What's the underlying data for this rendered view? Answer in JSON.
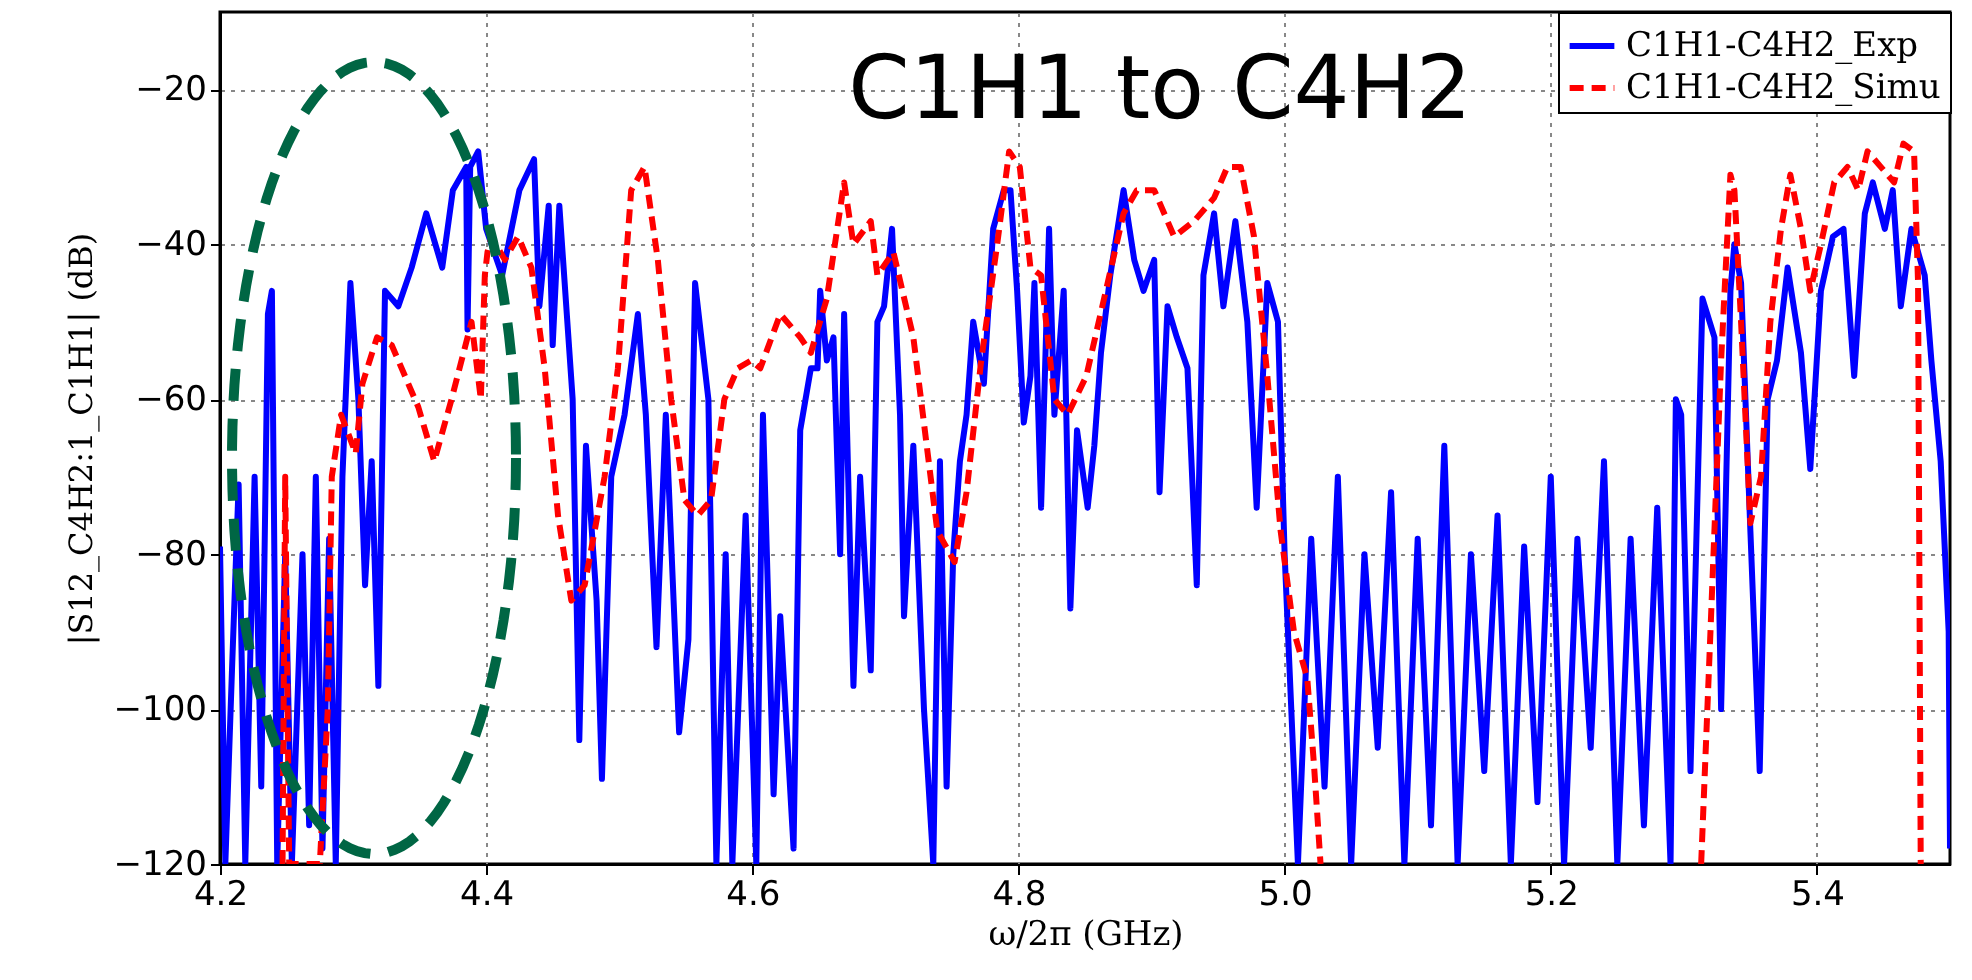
{
  "chart_data": {
    "type": "line",
    "title": "C1H1 to C4H2",
    "xlabel": "ω/2π (GHz)",
    "ylabel": "|S12_C4H2:1_C1H1| (dB)",
    "xlim": [
      4.2,
      5.5
    ],
    "xticks": [
      {
        "value": 4.2,
        "label": "4.2"
      },
      {
        "value": 4.4,
        "label": "4.4"
      },
      {
        "value": 4.6,
        "label": "4.6"
      },
      {
        "value": 4.8,
        "label": "4.8"
      },
      {
        "value": 5.0,
        "label": "5.0"
      },
      {
        "value": 5.2,
        "label": "5.2"
      },
      {
        "value": 5.4,
        "label": "5.4"
      }
    ],
    "ylim": [
      -120,
      -10
    ],
    "yticks": [
      -120,
      -100,
      -80,
      -60,
      -40,
      -20
    ],
    "grid": true,
    "legend": "top right",
    "series": [
      {
        "name": "C1H1-C4H2_Exp",
        "color": "#0000ff",
        "line_style": "solid",
        "x": [
          4.2,
          4.204,
          4.209,
          4.214,
          4.219,
          4.226,
          4.231,
          4.236,
          4.239,
          4.243,
          4.249,
          4.254,
          4.262,
          4.267,
          4.272,
          4.277,
          4.282,
          4.287,
          4.292,
          4.298,
          4.304,
          4.309,
          4.314,
          4.319,
          4.324,
          4.334,
          4.344,
          4.355,
          4.367,
          4.375,
          4.385,
          4.386,
          4.388,
          4.394,
          4.4,
          4.412,
          4.425,
          4.436,
          4.44,
          4.447,
          4.45,
          4.455,
          4.465,
          4.47,
          4.475,
          4.483,
          4.487,
          4.494,
          4.504,
          4.514,
          4.52,
          4.528,
          4.535,
          4.545,
          4.552,
          4.557,
          4.567,
          4.573,
          4.58,
          4.585,
          4.595,
          4.603,
          4.608,
          4.616,
          4.621,
          4.631,
          4.636,
          4.644,
          4.649,
          4.651,
          4.656,
          4.661,
          4.666,
          4.669,
          4.676,
          4.681,
          4.689,
          4.694,
          4.699,
          4.705,
          4.711,
          4.714,
          4.721,
          4.729,
          4.736,
          4.741,
          4.746,
          4.751,
          4.756,
          4.761,
          4.766,
          4.774,
          4.781,
          4.789,
          4.794,
          4.799,
          4.804,
          4.809,
          4.812,
          4.817,
          4.823,
          4.827,
          4.834,
          4.839,
          4.844,
          4.852,
          4.857,
          4.862,
          4.869,
          4.879,
          4.887,
          4.894,
          4.902,
          4.906,
          4.912,
          4.919,
          4.927,
          4.934,
          4.939,
          4.947,
          4.954,
          4.963,
          4.972,
          4.979,
          4.987,
          4.995,
          5.0,
          5.01,
          5.02,
          5.03,
          5.04,
          5.05,
          5.06,
          5.07,
          5.08,
          5.09,
          5.1,
          5.11,
          5.12,
          5.13,
          5.14,
          5.15,
          5.16,
          5.17,
          5.18,
          5.19,
          5.2,
          5.21,
          5.22,
          5.23,
          5.24,
          5.25,
          5.26,
          5.27,
          5.28,
          5.29,
          5.294,
          5.298,
          5.305,
          5.314,
          5.323,
          5.328,
          5.335,
          5.338,
          5.343,
          5.35,
          5.357,
          5.363,
          5.37,
          5.378,
          5.388,
          5.395,
          5.403,
          5.412,
          5.42,
          5.428,
          5.436,
          5.442,
          5.451,
          5.457,
          5.463,
          5.471,
          5.481,
          5.486,
          5.493,
          5.499,
          5.5
        ],
        "values": [
          -79,
          -120,
          -95,
          -71,
          -120,
          -70,
          -110,
          -49,
          -46,
          -120,
          -80,
          -120,
          -80,
          -115,
          -70,
          -118,
          -78,
          -120,
          -70,
          -45,
          -60,
          -84,
          -68,
          -97,
          -46,
          -48,
          -43,
          -36,
          -43,
          -33,
          -30,
          -51,
          -30,
          -28,
          -38,
          -44,
          -33,
          -29,
          -48,
          -35,
          -53,
          -35,
          -60,
          -104,
          -66,
          -86,
          -109,
          -70,
          -62,
          -49,
          -62,
          -92,
          -62,
          -103,
          -91,
          -45,
          -60,
          -120,
          -80,
          -120,
          -75,
          -120,
          -62,
          -111,
          -88,
          -118,
          -64,
          -56,
          -56,
          -46,
          -55,
          -52,
          -80,
          -49,
          -97,
          -70,
          -95,
          -50,
          -48,
          -38,
          -62,
          -88,
          -66,
          -100,
          -120,
          -68,
          -110,
          -80,
          -68,
          -62,
          -50,
          -58,
          -38,
          -33,
          -33,
          -46,
          -63,
          -57,
          -45,
          -74,
          -38,
          -62,
          -46,
          -87,
          -64,
          -74,
          -66,
          -54,
          -44,
          -33,
          -42,
          -46,
          -42,
          -72,
          -48,
          -52,
          -56,
          -84,
          -44,
          -36,
          -48,
          -37,
          -50,
          -74,
          -45,
          -50,
          -80,
          -120,
          -78,
          -110,
          -70,
          -120,
          -80,
          -105,
          -72,
          -120,
          -78,
          -115,
          -66,
          -120,
          -80,
          -108,
          -75,
          -120,
          -79,
          -112,
          -70,
          -120,
          -78,
          -105,
          -68,
          -120,
          -78,
          -115,
          -74,
          -120,
          -60,
          -62,
          -108,
          -47,
          -52,
          -100,
          -46,
          -40,
          -45,
          -77,
          -108,
          -60,
          -55,
          -43,
          -54,
          -69,
          -46,
          -39,
          -38,
          -57,
          -36,
          -32,
          -38,
          -33,
          -48,
          -38,
          -44,
          -55,
          -68,
          -90,
          -118
        ]
      },
      {
        "name": "C1H1-C4H2_Simu",
        "color": "#ff0000",
        "line_style": "dashed",
        "x": [
          4.247,
          4.249,
          4.252,
          4.275,
          4.281,
          4.284,
          4.291,
          4.302,
          4.307,
          4.318,
          4.329,
          4.339,
          4.349,
          4.361,
          4.374,
          4.389,
          4.396,
          4.399,
          4.401,
          4.404,
          4.414,
          4.424,
          4.434,
          4.444,
          4.454,
          4.464,
          4.474,
          4.489,
          4.499,
          4.509,
          4.519,
          4.529,
          4.539,
          4.549,
          4.559,
          4.569,
          4.579,
          4.589,
          4.599,
          4.606,
          4.621,
          4.636,
          4.644,
          4.656,
          4.669,
          4.676,
          4.689,
          4.694,
          4.706,
          4.721,
          4.739,
          4.752,
          4.761,
          4.772,
          4.784,
          4.793,
          4.801,
          4.809,
          4.817,
          4.827,
          4.837,
          4.851,
          4.867,
          4.879,
          4.889,
          4.902,
          4.917,
          4.932,
          4.947,
          4.957,
          4.967,
          4.977,
          4.987,
          4.997,
          5.007,
          5.017,
          5.022,
          5.027,
          5.1,
          5.313,
          5.32,
          5.328,
          5.335,
          5.338,
          5.343,
          5.35,
          5.358,
          5.365,
          5.373,
          5.38,
          5.388,
          5.395,
          5.403,
          5.413,
          5.423,
          5.431,
          5.438,
          5.448,
          5.458,
          5.465,
          5.473,
          5.476,
          5.478
        ],
        "values": [
          -120,
          -70,
          -120,
          -120,
          -100,
          -70,
          -62,
          -67,
          -58,
          -52,
          -53,
          -57,
          -61,
          -68,
          -60,
          -50,
          -60,
          -44,
          -41,
          -39,
          -42,
          -39,
          -43,
          -56,
          -75,
          -86,
          -84,
          -70,
          -56,
          -33,
          -30,
          -42,
          -60,
          -73,
          -75,
          -73,
          -60,
          -56,
          -55,
          -56,
          -49,
          -52,
          -54,
          -47,
          -32,
          -40,
          -37,
          -44,
          -41,
          -52,
          -77,
          -81,
          -72,
          -55,
          -40,
          -28,
          -30,
          -43,
          -44,
          -60,
          -62,
          -57,
          -45,
          -36,
          -33,
          -33,
          -39,
          -37,
          -34,
          -30,
          -30,
          -39,
          -57,
          -77,
          -90,
          -96,
          -107,
          -120,
          null,
          -120,
          -90,
          -55,
          -31,
          -33,
          -50,
          -76,
          -70,
          -50,
          -38,
          -31,
          -38,
          -46,
          -40,
          -32,
          -30,
          -33,
          -28,
          -30,
          -32,
          -27,
          -28,
          -45,
          -120
        ]
      }
    ]
  }
}
